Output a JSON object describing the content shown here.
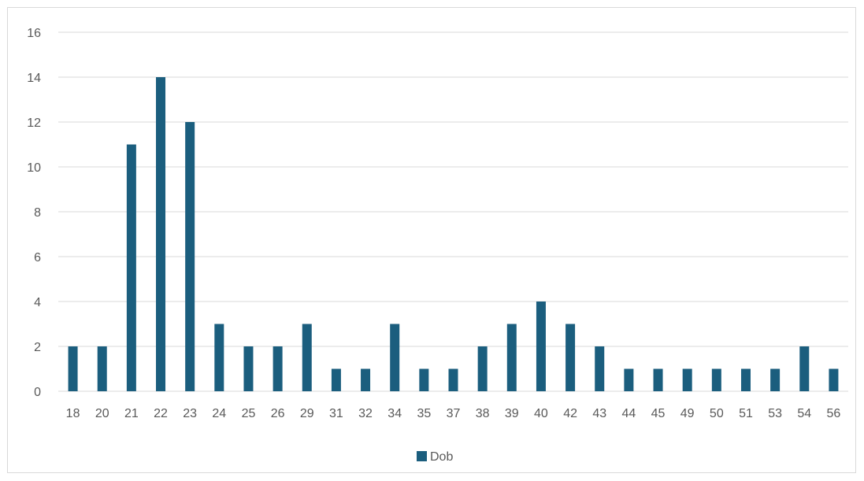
{
  "chart_data": {
    "type": "bar",
    "categories": [
      "18",
      "20",
      "21",
      "22",
      "23",
      "24",
      "25",
      "26",
      "29",
      "31",
      "32",
      "34",
      "35",
      "37",
      "38",
      "39",
      "40",
      "42",
      "43",
      "44",
      "45",
      "49",
      "50",
      "51",
      "53",
      "54",
      "56"
    ],
    "series": [
      {
        "name": "Dob",
        "color": "#1b5e7e",
        "values": [
          2,
          2,
          11,
          14,
          12,
          3,
          2,
          2,
          3,
          1,
          1,
          3,
          1,
          1,
          2,
          3,
          4,
          3,
          2,
          1,
          1,
          1,
          1,
          1,
          1,
          2,
          1
        ]
      }
    ],
    "ylim": [
      0,
      16
    ],
    "yticks": [
      "0",
      "2",
      "4",
      "6",
      "8",
      "10",
      "12",
      "14",
      "16"
    ],
    "grid": true,
    "legend_position": "bottom"
  }
}
